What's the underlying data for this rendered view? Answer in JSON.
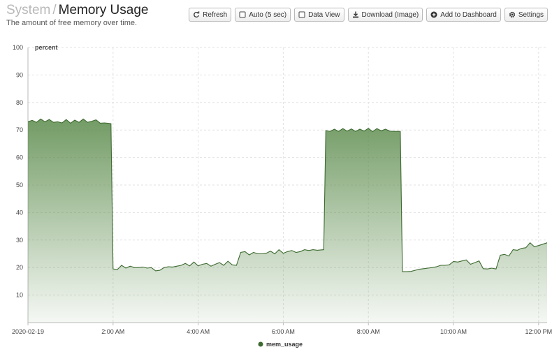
{
  "header": {
    "crumb": "System",
    "separator": "/",
    "title": "Memory Usage",
    "subtitle": "The amount of free memory over time."
  },
  "toolbar": {
    "refresh": "Refresh",
    "auto": "Auto (5 sec)",
    "data_view": "Data View",
    "download": "Download (Image)",
    "add_dashboard": "Add to Dashboard",
    "settings": "Settings"
  },
  "chart_data": {
    "type": "area",
    "ylabel": "percent",
    "ylim": [
      0,
      100
    ],
    "yticks": [
      10,
      20,
      30,
      40,
      50,
      60,
      70,
      80,
      90,
      100
    ],
    "xlim": [
      0,
      12.2
    ],
    "xticks": [
      {
        "hour": 0,
        "label": "2020-02-19"
      },
      {
        "hour": 2,
        "label": "2:00 AM"
      },
      {
        "hour": 4,
        "label": "4:00 AM"
      },
      {
        "hour": 6,
        "label": "6:00 AM"
      },
      {
        "hour": 8,
        "label": "8:00 AM"
      },
      {
        "hour": 10,
        "label": "10:00 AM"
      },
      {
        "hour": 12,
        "label": "12:00 PM"
      }
    ],
    "grid": true,
    "legend_position": "bottom-center",
    "series": [
      {
        "name": "mem_usage",
        "color": "#5a8a4a",
        "x": [
          0,
          0.1,
          0.2,
          0.3,
          0.4,
          0.5,
          0.6,
          0.7,
          0.8,
          0.9,
          1.0,
          1.1,
          1.2,
          1.3,
          1.4,
          1.5,
          1.6,
          1.7,
          1.8,
          1.9,
          1.95,
          2.0,
          2.1,
          2.2,
          2.3,
          2.4,
          2.5,
          2.6,
          2.7,
          2.8,
          2.9,
          3.0,
          3.1,
          3.2,
          3.3,
          3.4,
          3.5,
          3.6,
          3.7,
          3.8,
          3.9,
          4.0,
          4.1,
          4.2,
          4.3,
          4.4,
          4.5,
          4.6,
          4.7,
          4.8,
          4.9,
          5.0,
          5.1,
          5.2,
          5.3,
          5.4,
          5.5,
          5.6,
          5.7,
          5.8,
          5.9,
          6.0,
          6.1,
          6.2,
          6.3,
          6.4,
          6.5,
          6.6,
          6.7,
          6.8,
          6.95,
          7.0,
          7.1,
          7.2,
          7.3,
          7.4,
          7.5,
          7.6,
          7.7,
          7.8,
          7.9,
          8.0,
          8.1,
          8.2,
          8.3,
          8.4,
          8.5,
          8.6,
          8.75,
          8.8,
          8.9,
          9.0,
          9.1,
          9.2,
          9.3,
          9.4,
          9.5,
          9.6,
          9.7,
          9.8,
          9.9,
          10.0,
          10.1,
          10.2,
          10.3,
          10.4,
          10.5,
          10.6,
          10.7,
          10.8,
          10.9,
          11.0,
          11.1,
          11.2,
          11.3,
          11.4,
          11.5,
          11.6,
          11.7,
          11.8,
          11.9,
          12.0,
          12.1,
          12.2
        ],
        "values": [
          73,
          73.5,
          72.8,
          74,
          73,
          73.8,
          72.8,
          73,
          72.6,
          73.8,
          72.5,
          73.6,
          72.8,
          74,
          72.8,
          73.2,
          73.7,
          72.5,
          72.6,
          72.4,
          72.3,
          19.5,
          19.3,
          20.8,
          19.8,
          20.5,
          20,
          20,
          20.2,
          19.8,
          20,
          18.8,
          19,
          20,
          20.3,
          20.2,
          20.5,
          20.8,
          21.5,
          20.6,
          22,
          20.6,
          21.2,
          21.5,
          20.5,
          21.2,
          21.8,
          20.8,
          22.3,
          21,
          20.8,
          25.5,
          25.8,
          24.6,
          25.5,
          25,
          25,
          25.2,
          26,
          25,
          26.5,
          25.2,
          25.8,
          26.2,
          25.5,
          25.8,
          26.5,
          26.2,
          26.5,
          26.3,
          26.5,
          69.8,
          69.5,
          70.3,
          69.5,
          70.5,
          69.6,
          70.4,
          69.5,
          70.3,
          69.6,
          70.6,
          69.4,
          70.5,
          69.7,
          70.3,
          69.6,
          69.5,
          69.5,
          18.5,
          18.5,
          18.6,
          19,
          19.4,
          19.6,
          19.8,
          20,
          20.3,
          20.8,
          20.8,
          21,
          22.2,
          22,
          22.4,
          22.8,
          21.2,
          21.8,
          22.4,
          19.6,
          19.5,
          19.8,
          19.5,
          24.5,
          24.8,
          24.2,
          26.5,
          26.3,
          27,
          27.2,
          29,
          27.6,
          28,
          28.5,
          29
        ]
      }
    ]
  }
}
